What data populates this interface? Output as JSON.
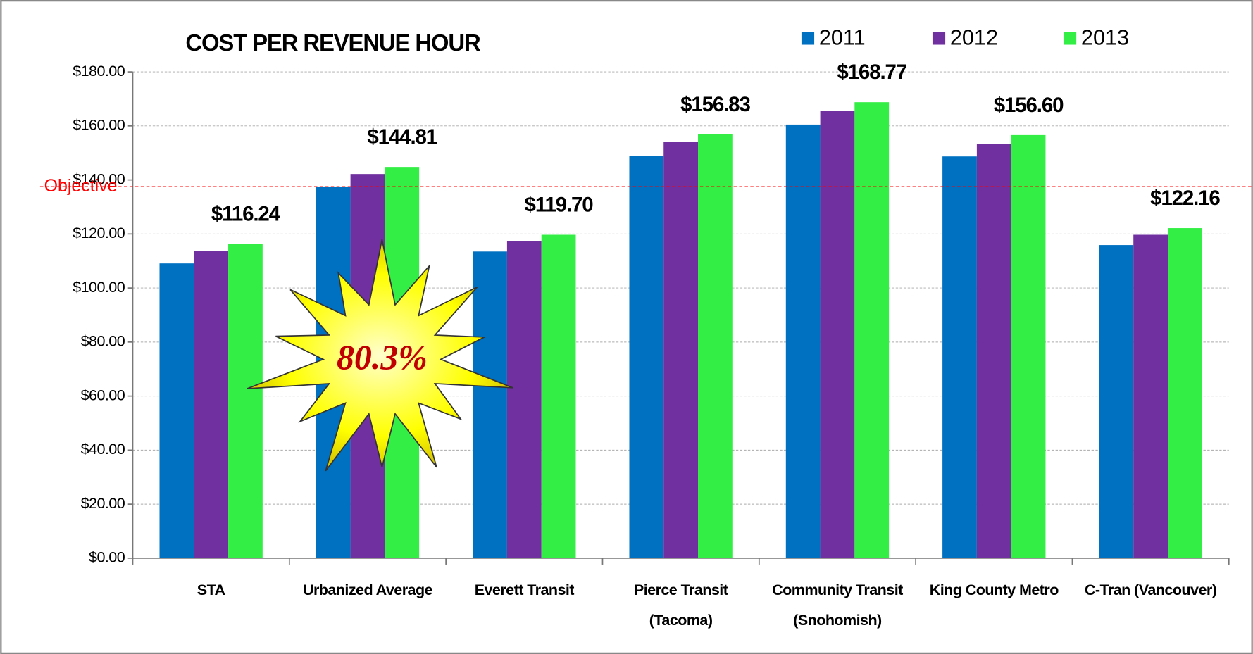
{
  "chart_data": {
    "type": "bar",
    "title": "COST PER REVENUE HOUR",
    "categories": [
      "STA",
      "Urbanized Average",
      "Everett Transit",
      "Pierce Transit\n(Tacoma)",
      "Community Transit\n(Snohomish)",
      "King County Metro",
      "C-Tran (Vancouver)"
    ],
    "series": [
      {
        "name": "2011",
        "color": "#0070c0",
        "values": [
          109.1,
          137.5,
          113.5,
          149.0,
          160.5,
          148.7,
          115.9
        ]
      },
      {
        "name": "2012",
        "color": "#7030a0",
        "values": [
          113.8,
          142.2,
          117.4,
          154.0,
          165.5,
          153.4,
          119.7
        ]
      },
      {
        "name": "2013",
        "color": "#33ee44",
        "values": [
          116.24,
          144.81,
          119.7,
          156.83,
          168.77,
          156.6,
          122.16
        ],
        "value_labels": [
          "$116.24",
          "$144.81",
          "$119.70",
          "$156.83",
          "$168.77",
          "$156.60",
          "$122.16"
        ]
      }
    ],
    "ylim": [
      0,
      180
    ],
    "yticks": [
      {
        "value": 0,
        "label": "$0.00"
      },
      {
        "value": 20,
        "label": "$20.00"
      },
      {
        "value": 40,
        "label": "$40.00"
      },
      {
        "value": 60,
        "label": "$60.00"
      },
      {
        "value": 80,
        "label": "$80.00"
      },
      {
        "value": 100,
        "label": "$100.00"
      },
      {
        "value": 120,
        "label": "$120.00"
      },
      {
        "value": 140,
        "label": "$140.00"
      },
      {
        "value": 160,
        "label": "$160.00"
      },
      {
        "value": 180,
        "label": "$180.00"
      }
    ],
    "grid": true,
    "objective": {
      "label": "Objective",
      "value": 137.5,
      "color": "#ff0000"
    },
    "annotation": "80.3%"
  }
}
